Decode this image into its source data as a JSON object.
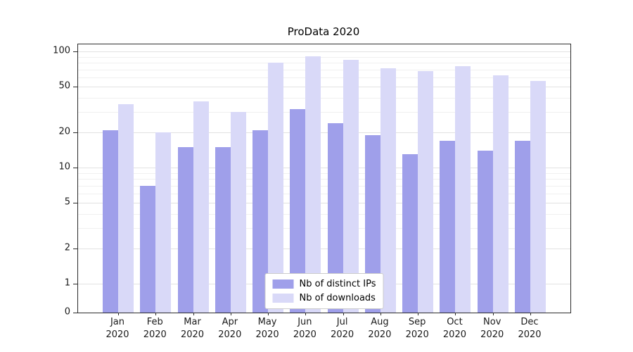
{
  "chart_data": {
    "type": "bar",
    "title": "ProData 2020",
    "scale": "symlog",
    "categories": [
      "Jan 2020",
      "Feb 2020",
      "Mar 2020",
      "Apr 2020",
      "May 2020",
      "Jun 2020",
      "Jul 2020",
      "Aug 2020",
      "Sep 2020",
      "Oct 2020",
      "Nov 2020",
      "Dec 2020"
    ],
    "series": [
      {
        "name": "Nb of distinct IPs",
        "color": "#9f9fea",
        "values": [
          21,
          7,
          15,
          15,
          21,
          32,
          24,
          19,
          13,
          17,
          14,
          17
        ]
      },
      {
        "name": "Nb of downloads",
        "color": "#d9d9f8",
        "values": [
          35,
          20,
          37,
          30,
          80,
          91,
          85,
          72,
          68,
          75,
          62,
          56
        ]
      }
    ],
    "y_ticks": [
      100,
      50,
      20,
      10,
      5,
      2,
      1,
      0
    ],
    "y_minor_ticks": [
      3,
      4,
      6,
      7,
      8,
      9,
      30,
      40,
      60,
      70,
      80,
      90
    ],
    "ylim": [
      0,
      112
    ],
    "xlabel": "",
    "ylabel": "",
    "grid": "on",
    "legend_position": "lower center"
  }
}
